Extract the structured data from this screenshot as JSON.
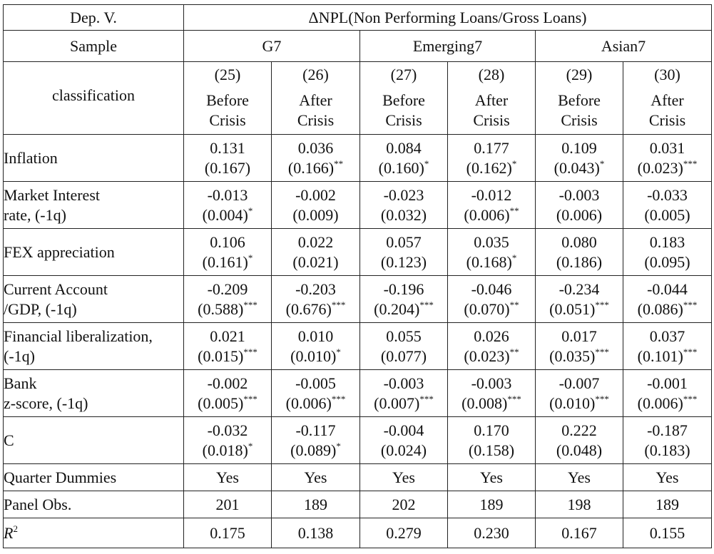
{
  "header": {
    "dep_var_label": "Dep. V.",
    "dep_var_value": "ΔNPL(Non Performing Loans/Gross Loans)",
    "sample_label": "Sample",
    "classification_label": "classification",
    "groups": [
      "G7",
      "Emerging7",
      "Asian7"
    ],
    "columns": [
      {
        "num": "(25)",
        "line1": "Before",
        "line2": "Crisis"
      },
      {
        "num": "(26)",
        "line1": "After",
        "line2": "Crisis"
      },
      {
        "num": "(27)",
        "line1": "Before",
        "line2": "Crisis"
      },
      {
        "num": "(28)",
        "line1": "After",
        "line2": "Crisis"
      },
      {
        "num": "(29)",
        "line1": "Before",
        "line2": "Crisis"
      },
      {
        "num": "(30)",
        "line1": "After",
        "line2": "Crisis"
      }
    ]
  },
  "rows": [
    {
      "label1": "Inflation",
      "label2": "",
      "coef": [
        "0.131",
        "0.036",
        "0.084",
        "0.177",
        "0.109",
        "0.031"
      ],
      "se": [
        "(0.167)",
        "(0.166)",
        "(0.160)",
        "(0.162)",
        "(0.043)",
        "(0.023)"
      ],
      "stars": [
        "",
        "**",
        "*",
        "*",
        "*",
        "***"
      ]
    },
    {
      "label1": "Market Interest",
      "label2": "rate, (-1q)",
      "coef": [
        "-0.013",
        "-0.002",
        "-0.023",
        "-0.012",
        "-0.003",
        "-0.033"
      ],
      "se": [
        "(0.004)",
        "(0.009)",
        "(0.032)",
        "(0.006)",
        "(0.006)",
        "(0.005)"
      ],
      "stars": [
        "*",
        "",
        "",
        "**",
        "",
        ""
      ]
    },
    {
      "label1": "FEX appreciation",
      "label2": "",
      "coef": [
        "0.106",
        "0.022",
        "0.057",
        "0.035",
        "0.080",
        "0.183"
      ],
      "se": [
        "(0.161)",
        "(0.021)",
        "(0.123)",
        "(0.168)",
        "(0.186)",
        "(0.095)"
      ],
      "stars": [
        "*",
        "",
        "",
        "*",
        "",
        ""
      ]
    },
    {
      "label1": "Current Account",
      "label2": "/GDP, (-1q)",
      "coef": [
        "-0.209",
        "-0.203",
        "-0.196",
        "-0.046",
        "-0.234",
        "-0.044"
      ],
      "se": [
        "(0.588)",
        "(0.676)",
        "(0.204)",
        "(0.070)",
        "(0.051)",
        "(0.086)"
      ],
      "stars": [
        "***",
        "***",
        "***",
        "**",
        "***",
        "***"
      ]
    },
    {
      "label1": "Financial liberalization,",
      "label2": "(-1q)",
      "coef": [
        "0.021",
        "0.010",
        "0.055",
        "0.026",
        "0.017",
        "0.037"
      ],
      "se": [
        "(0.015)",
        "(0.010)",
        "(0.077)",
        "(0.023)",
        "(0.035)",
        "(0.101)"
      ],
      "stars": [
        "***",
        "*",
        "",
        "**",
        "***",
        "***"
      ]
    },
    {
      "label1": "Bank",
      "label2": "z-score, (-1q)",
      "coef": [
        "-0.002",
        "-0.005",
        "-0.003",
        "-0.003",
        "-0.007",
        "-0.001"
      ],
      "se": [
        "(0.005)",
        "(0.006)",
        "(0.007)",
        "(0.008)",
        "(0.010)",
        "(0.006)"
      ],
      "stars": [
        "***",
        "***",
        "***",
        "***",
        "***",
        "***"
      ]
    },
    {
      "label1": "C",
      "label2": "",
      "coef": [
        "-0.032",
        "-0.117",
        "-0.004",
        "0.170",
        "0.222",
        "-0.187"
      ],
      "se": [
        "(0.018)",
        "(0.089)",
        "(0.024)",
        "(0.158)",
        "(0.048)",
        "(0.183)"
      ],
      "stars": [
        "*",
        "*",
        "",
        "",
        "",
        ""
      ]
    }
  ],
  "footer": {
    "quarter_label": "Quarter Dummies",
    "quarter_values": [
      "Yes",
      "Yes",
      "Yes",
      "Yes",
      "Yes",
      "Yes"
    ],
    "obs_label": "Panel Obs.",
    "obs_values": [
      "201",
      "189",
      "202",
      "189",
      "198",
      "189"
    ],
    "r2_label": "R",
    "r2_sup": "2",
    "r2_values": [
      "0.175",
      "0.138",
      "0.279",
      "0.230",
      "0.167",
      "0.155"
    ]
  }
}
